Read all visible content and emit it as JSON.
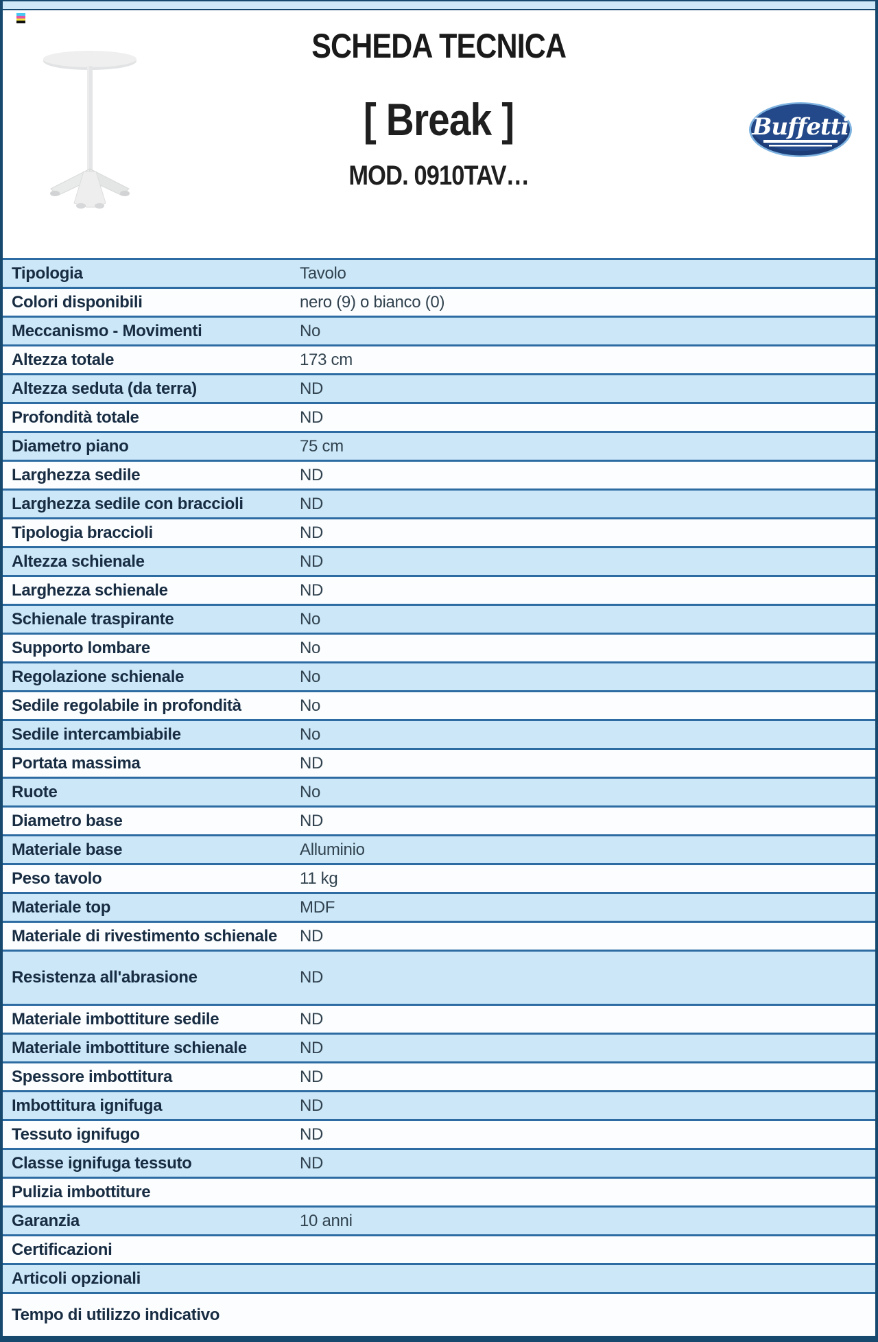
{
  "header": {
    "title": "SCHEDA TECNICA",
    "product_name": "[ Break ]",
    "model": "MOD. 0910TAV…",
    "brand": "Buffetti"
  },
  "icons": {
    "print_mark": "cmyk-stripes-icon",
    "product_photo": "pedestal-bar-table-photo",
    "brand_logo": "buffetti-oval-logo"
  },
  "colors": {
    "frame": "#17496f",
    "separator": "#2d6ca3",
    "row_blue": "#cbe7f8",
    "row_white": "#fbfdff",
    "top_bar": "#cfe9f8",
    "label_text": "#182c42",
    "value_text": "#31424e",
    "logo_navy": "#1d3d78",
    "logo_rim": "#7db2e0",
    "cmyk_stripes": [
      "#45c8f1",
      "#e455a2",
      "#f3e43b",
      "#101010"
    ]
  },
  "table": {
    "rows": [
      {
        "label": "Tipologia",
        "value": "Tavolo"
      },
      {
        "label": "Colori disponibili",
        "value": "nero (9) o bianco (0)"
      },
      {
        "label": "Meccanismo - Movimenti",
        "value": "No"
      },
      {
        "label": "Altezza totale",
        "value": "173 cm"
      },
      {
        "label": "Altezza seduta (da terra)",
        "value": "ND"
      },
      {
        "label": "Profondità totale",
        "value": "ND"
      },
      {
        "label": "Diametro piano",
        "value": "75 cm"
      },
      {
        "label": "Larghezza sedile",
        "value": "ND"
      },
      {
        "label": "Larghezza sedile con braccioli",
        "value": "ND"
      },
      {
        "label": "Tipologia braccioli",
        "value": "ND"
      },
      {
        "label": "Altezza schienale",
        "value": "ND"
      },
      {
        "label": "Larghezza schienale",
        "value": "ND"
      },
      {
        "label": "Schienale traspirante",
        "value": "No"
      },
      {
        "label": "Supporto lombare",
        "value": "No"
      },
      {
        "label": "Regolazione schienale",
        "value": "No"
      },
      {
        "label": "Sedile regolabile in profondità",
        "value": "No"
      },
      {
        "label": "Sedile intercambiabile",
        "value": "No"
      },
      {
        "label": "Portata massima",
        "value": "ND"
      },
      {
        "label": "Ruote",
        "value": "No"
      },
      {
        "label": "Diametro base",
        "value": "ND"
      },
      {
        "label": "Materiale base",
        "value": "Alluminio"
      },
      {
        "label": "Peso tavolo",
        "value": "11 kg"
      },
      {
        "label": "Materiale top",
        "value": "MDF"
      },
      {
        "label": "Materiale di rivestimento schienale",
        "value": "ND"
      },
      {
        "label": "Resistenza all'abrasione",
        "value": "ND",
        "tall": "xl"
      },
      {
        "label": "Materiale imbottiture sedile",
        "value": "ND"
      },
      {
        "label": "Materiale imbottiture schienale",
        "value": "ND"
      },
      {
        "label": "Spessore imbottitura",
        "value": "ND"
      },
      {
        "label": "Imbottitura ignifuga",
        "value": "ND"
      },
      {
        "label": "Tessuto ignifugo",
        "value": "ND"
      },
      {
        "label": "Classe ignifuga tessuto",
        "value": "ND"
      },
      {
        "label": "Pulizia imbottiture",
        "value": ""
      },
      {
        "label": "Garanzia",
        "value": "10 anni"
      },
      {
        "label": "Certificazioni",
        "value": ""
      },
      {
        "label": "Articoli opzionali",
        "value": ""
      },
      {
        "label": "Tempo di utilizzo indicativo",
        "value": "",
        "tall": "lg"
      }
    ]
  }
}
